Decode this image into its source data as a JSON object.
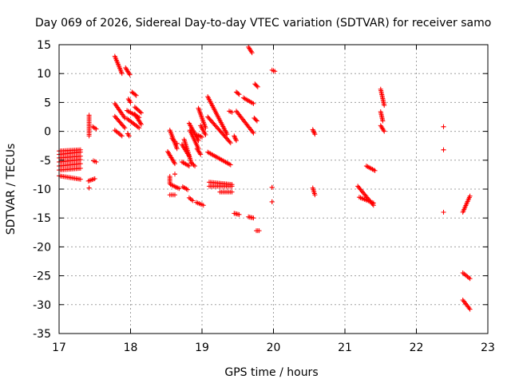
{
  "chart_data": {
    "type": "scatter",
    "title": "Day 069 of 2026, Sidereal Day-to-day VTEC variation (SDTVAR) for receiver samo",
    "xlabel": "GPS time / hours",
    "ylabel": "SDTVAR / TECUs",
    "xlim": [
      17,
      23
    ],
    "ylim": [
      -35,
      15
    ],
    "xticks": [
      17,
      18,
      19,
      20,
      21,
      22,
      23
    ],
    "yticks": [
      -35,
      -30,
      -25,
      -20,
      -15,
      -10,
      -5,
      0,
      5,
      10,
      15
    ],
    "grid": true,
    "marker": "+",
    "marker_color": "#ff0000",
    "series": [
      {
        "name": "SDTVAR",
        "segments": [
          [
            [
              17.0,
              -3.4
            ],
            [
              17.3,
              -3.2
            ]
          ],
          [
            [
              17.0,
              -4.0
            ],
            [
              17.3,
              -3.6
            ]
          ],
          [
            [
              17.0,
              -4.6
            ],
            [
              17.3,
              -4.3
            ]
          ],
          [
            [
              17.0,
              -5.3
            ],
            [
              17.3,
              -4.9
            ]
          ],
          [
            [
              17.0,
              -6.0
            ],
            [
              17.3,
              -5.6
            ]
          ],
          [
            [
              17.0,
              -6.7
            ],
            [
              17.3,
              -6.4
            ]
          ],
          [
            [
              17.0,
              -7.7
            ],
            [
              17.3,
              -8.3
            ]
          ],
          [
            [
              17.42,
              2.8
            ],
            [
              17.42,
              -0.8
            ]
          ],
          [
            [
              17.47,
              0.8
            ],
            [
              17.52,
              0.4
            ]
          ],
          [
            [
              17.48,
              -5.1
            ],
            [
              17.52,
              -5.3
            ]
          ],
          [
            [
              17.41,
              -8.6
            ],
            [
              17.5,
              -8.2
            ]
          ],
          [
            [
              17.42,
              -9.8
            ],
            [
              17.42,
              -9.8
            ]
          ],
          [
            [
              17.78,
              13.0
            ],
            [
              17.88,
              10.0
            ]
          ],
          [
            [
              17.78,
              4.8
            ],
            [
              17.92,
              2.3
            ]
          ],
          [
            [
              17.78,
              2.6
            ],
            [
              17.92,
              0.6
            ]
          ],
          [
            [
              17.78,
              0.2
            ],
            [
              17.88,
              -0.8
            ]
          ],
          [
            [
              17.93,
              11.0
            ],
            [
              17.99,
              9.8
            ]
          ],
          [
            [
              17.97,
              5.6
            ],
            [
              18.0,
              5.0
            ]
          ],
          [
            [
              17.96,
              -0.4
            ],
            [
              17.98,
              -0.8
            ]
          ],
          [
            [
              18.02,
              6.8
            ],
            [
              18.08,
              6.2
            ]
          ],
          [
            [
              17.95,
              3.6
            ],
            [
              18.12,
              2.4
            ]
          ],
          [
            [
              17.95,
              2.2
            ],
            [
              18.12,
              0.6
            ]
          ],
          [
            [
              18.06,
              4.2
            ],
            [
              18.15,
              3.2
            ]
          ],
          [
            [
              18.06,
              3.0
            ],
            [
              18.15,
              1.2
            ]
          ],
          [
            [
              18.55,
              0.2
            ],
            [
              18.65,
              -3.0
            ]
          ],
          [
            [
              18.58,
              -1.2
            ],
            [
              18.62,
              -1.8
            ]
          ],
          [
            [
              18.52,
              -3.5
            ],
            [
              18.62,
              -5.6
            ]
          ],
          [
            [
              18.65,
              -2.1
            ],
            [
              18.65,
              -2.1
            ]
          ],
          [
            [
              18.62,
              -7.4
            ],
            [
              18.62,
              -7.4
            ]
          ],
          [
            [
              18.55,
              -7.8
            ],
            [
              18.55,
              -9.0
            ]
          ],
          [
            [
              18.56,
              -9.2
            ],
            [
              18.68,
              -9.9
            ]
          ],
          [
            [
              18.55,
              -11.0
            ],
            [
              18.62,
              -11.0
            ]
          ],
          [
            [
              18.75,
              -1.4
            ],
            [
              18.85,
              -5.4
            ]
          ],
          [
            [
              18.72,
              -2.3
            ],
            [
              18.82,
              -4.3
            ]
          ],
          [
            [
              18.72,
              -5.3
            ],
            [
              18.82,
              -6.0
            ]
          ],
          [
            [
              18.73,
              -9.6
            ],
            [
              18.8,
              -10.1
            ]
          ],
          [
            [
              18.82,
              -11.5
            ],
            [
              18.87,
              -12.0
            ]
          ],
          [
            [
              18.82,
              1.4
            ],
            [
              18.95,
              -1.6
            ]
          ],
          [
            [
              18.83,
              0.2
            ],
            [
              18.95,
              -3.0
            ]
          ],
          [
            [
              18.85,
              -5.5
            ],
            [
              18.9,
              -6.0
            ]
          ],
          [
            [
              18.92,
              -12.3
            ],
            [
              19.02,
              -12.8
            ]
          ],
          [
            [
              18.93,
              -0.6
            ],
            [
              19.0,
              -1.0
            ]
          ],
          [
            [
              18.95,
              4.0
            ],
            [
              19.05,
              0.6
            ]
          ],
          [
            [
              18.98,
              1.0
            ],
            [
              19.05,
              -0.6
            ]
          ],
          [
            [
              18.93,
              -3.0
            ],
            [
              18.98,
              -4.0
            ]
          ],
          [
            [
              19.08,
              2.5
            ],
            [
              19.4,
              -2.0
            ]
          ],
          [
            [
              19.08,
              6.0
            ],
            [
              19.35,
              -0.5
            ]
          ],
          [
            [
              19.08,
              -3.6
            ],
            [
              19.4,
              -5.8
            ]
          ],
          [
            [
              19.1,
              -8.8
            ],
            [
              19.42,
              -9.2
            ]
          ],
          [
            [
              19.1,
              -9.5
            ],
            [
              19.42,
              -9.5
            ]
          ],
          [
            [
              19.25,
              -10.5
            ],
            [
              19.42,
              -10.5
            ]
          ],
          [
            [
              19.38,
              3.5
            ],
            [
              19.42,
              3.3
            ]
          ],
          [
            [
              19.48,
              3.5
            ],
            [
              19.72,
              -0.3
            ]
          ],
          [
            [
              19.48,
              6.8
            ],
            [
              19.52,
              6.4
            ]
          ],
          [
            [
              19.58,
              5.8
            ],
            [
              19.72,
              4.8
            ]
          ],
          [
            [
              19.45,
              -0.8
            ],
            [
              19.48,
              -1.6
            ]
          ],
          [
            [
              19.45,
              -14.2
            ],
            [
              19.52,
              -14.4
            ]
          ],
          [
            [
              19.65,
              -14.8
            ],
            [
              19.72,
              -15.0
            ]
          ],
          [
            [
              19.65,
              14.6
            ],
            [
              19.7,
              13.6
            ]
          ],
          [
            [
              19.74,
              8.2
            ],
            [
              19.78,
              7.7
            ]
          ],
          [
            [
              19.73,
              2.3
            ],
            [
              19.77,
              1.8
            ]
          ],
          [
            [
              19.76,
              -17.2
            ],
            [
              19.8,
              -17.2
            ]
          ],
          [
            [
              19.98,
              10.6
            ],
            [
              20.02,
              10.4
            ]
          ],
          [
            [
              19.98,
              -9.7
            ],
            [
              19.98,
              -9.7
            ]
          ],
          [
            [
              19.98,
              -12.2
            ],
            [
              19.98,
              -12.2
            ]
          ],
          [
            [
              20.55,
              0.3
            ],
            [
              20.58,
              -0.5
            ]
          ],
          [
            [
              20.55,
              -9.8
            ],
            [
              20.58,
              -11.0
            ]
          ],
          [
            [
              21.18,
              -9.5
            ],
            [
              21.4,
              -12.8
            ]
          ],
          [
            [
              21.2,
              -11.4
            ],
            [
              21.4,
              -12.4
            ]
          ],
          [
            [
              21.3,
              -6.0
            ],
            [
              21.42,
              -6.8
            ]
          ],
          [
            [
              21.5,
              7.3
            ],
            [
              21.55,
              4.5
            ]
          ],
          [
            [
              21.5,
              3.4
            ],
            [
              21.53,
              1.8
            ]
          ],
          [
            [
              21.5,
              1.0
            ],
            [
              21.55,
              0.0
            ]
          ],
          [
            [
              22.38,
              0.8
            ],
            [
              22.38,
              0.8
            ]
          ],
          [
            [
              22.38,
              -3.2
            ],
            [
              22.38,
              -3.2
            ]
          ],
          [
            [
              22.38,
              -14.0
            ],
            [
              22.38,
              -14.0
            ]
          ],
          [
            [
              22.65,
              -14.0
            ],
            [
              22.75,
              -11.2
            ]
          ],
          [
            [
              22.65,
              -24.5
            ],
            [
              22.75,
              -25.5
            ]
          ],
          [
            [
              22.65,
              -29.2
            ],
            [
              22.75,
              -30.8
            ]
          ]
        ]
      }
    ]
  }
}
